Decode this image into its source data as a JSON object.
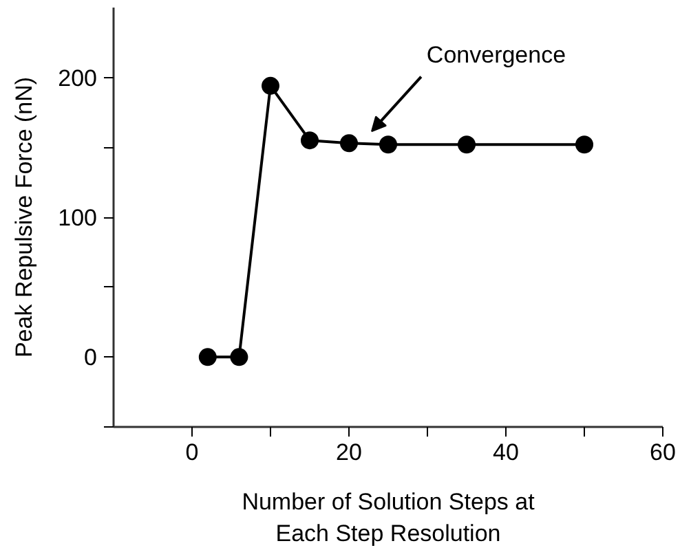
{
  "chart_data": {
    "type": "line",
    "xlabel": "Number of Solution Steps at\nEach Step Resolution",
    "ylabel": "Peak Repulsive Force (nN)",
    "x": [
      2,
      6,
      10,
      15,
      20,
      25,
      35,
      50
    ],
    "series": [
      {
        "color": "#000000",
        "values": [
          0,
          0,
          194,
          155,
          153,
          152,
          152,
          152
        ]
      }
    ],
    "xlim": [
      -10,
      60
    ],
    "ylim": [
      -50,
      250
    ],
    "xticks": [
      0,
      {
        "value": 10,
        "label": null
      },
      20,
      {
        "value": 30,
        "label": null
      },
      40,
      {
        "value": 50,
        "label": null
      },
      60
    ],
    "yticks": [
      {
        "value": -50,
        "label": null
      },
      0,
      {
        "value": 50,
        "label": null
      },
      100,
      {
        "value": 150,
        "label": null
      },
      200
    ],
    "annotations": [
      "Convergence"
    ],
    "marker": "circle",
    "line_style": "solid",
    "grid": false
  }
}
